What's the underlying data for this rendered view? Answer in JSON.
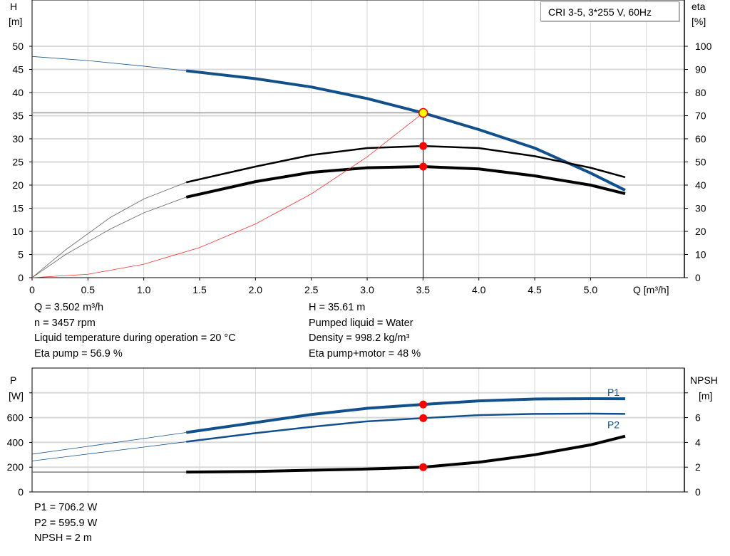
{
  "chart_data": [
    {
      "type": "line",
      "title": "CRI 3-5, 3*255 V, 60Hz",
      "xlabel": "Q [m³/h]",
      "ylabel": "H\n[m]",
      "y_left_label": {
        "name": "H",
        "unit": "[m]"
      },
      "y_right_label": {
        "name": "eta",
        "unit": "[%]"
      },
      "xlim": [
        0,
        5.84
      ],
      "ylim": [
        0,
        60
      ],
      "y2lim": [
        0,
        120
      ],
      "x_ticks": [
        "0",
        "0.5",
        "1.0",
        "1.5",
        "2.0",
        "2.5",
        "3.0",
        "3.5",
        "4.0",
        "4.5",
        "5.0"
      ],
      "y_ticks": [
        "0",
        "5",
        "10",
        "15",
        "20",
        "25",
        "30",
        "35",
        "40",
        "45",
        "50"
      ],
      "y2_ticks": [
        "0",
        "10",
        "20",
        "30",
        "40",
        "50",
        "60",
        "70",
        "80",
        "90",
        "100"
      ],
      "grid": true,
      "operating_range_start": 1.38,
      "duty_point": {
        "Q": 3.502,
        "H": 35.61,
        "eta_pump": 56.9,
        "eta_total": 48
      },
      "series": [
        {
          "key": "H",
          "axis": "left",
          "color": "#12508c",
          "x": [
            0,
            0.5,
            1.0,
            1.38,
            2.0,
            2.5,
            3.0,
            3.5,
            4.0,
            4.5,
            5.0,
            5.31
          ],
          "y": [
            47.8,
            46.9,
            45.7,
            44.7,
            43.0,
            41.2,
            38.7,
            35.6,
            32.0,
            28.0,
            22.6,
            18.9
          ]
        },
        {
          "key": "eta_pump",
          "axis": "right",
          "color": "#000000",
          "x": [
            0,
            0.3,
            0.7,
            1.0,
            1.38,
            2.0,
            2.5,
            3.0,
            3.5,
            4.0,
            4.5,
            5.0,
            5.31
          ],
          "y": [
            0,
            12,
            26,
            34,
            41.2,
            48,
            53,
            56,
            56.9,
            56,
            52.5,
            47.5,
            43.4
          ]
        },
        {
          "key": "eta_total",
          "axis": "right",
          "color": "#000000",
          "x": [
            0,
            0.3,
            0.7,
            1.0,
            1.38,
            2.0,
            2.5,
            3.0,
            3.5,
            4.0,
            4.5,
            5.0,
            5.31
          ],
          "y": [
            0,
            10,
            21,
            28,
            34.8,
            41.5,
            45.5,
            47.5,
            48,
            47,
            44,
            40,
            36.3
          ]
        },
        {
          "key": "system",
          "axis": "left",
          "color": "#ff3030",
          "x": [
            0,
            0.5,
            1.0,
            1.5,
            2.0,
            2.5,
            3.0,
            3.502
          ],
          "y": [
            0,
            0.73,
            2.9,
            6.5,
            11.6,
            18.1,
            26.1,
            35.61
          ]
        }
      ]
    },
    {
      "type": "line",
      "y_left_label": {
        "name": "P",
        "unit": "[W]"
      },
      "y_right_label": {
        "name": "NPSH",
        "unit": "[m]"
      },
      "xlim": [
        0,
        5.84
      ],
      "ylim": [
        0,
        1000
      ],
      "y2lim": [
        0,
        10
      ],
      "y_ticks": [
        "0",
        "200",
        "400",
        "600",
        ""
      ],
      "y2_ticks": [
        "0",
        "2",
        "4",
        "6",
        ""
      ],
      "grid": true,
      "series": [
        {
          "key": "P1",
          "name": "P1",
          "axis": "left",
          "color": "#12508c",
          "x": [
            0,
            0.5,
            1.0,
            1.38,
            2.0,
            2.5,
            3.0,
            3.5,
            4.0,
            4.5,
            5.0,
            5.31
          ],
          "y": [
            305,
            368,
            431,
            480,
            560,
            625,
            675,
            706.2,
            735,
            750,
            753,
            752
          ]
        },
        {
          "key": "P2",
          "name": "P2",
          "axis": "left",
          "color": "#12508c",
          "x": [
            0,
            0.5,
            1.0,
            1.38,
            2.0,
            2.5,
            3.0,
            3.5,
            4.0,
            4.5,
            5.0,
            5.31
          ],
          "y": [
            250,
            306,
            362,
            405,
            475,
            525,
            570,
            595.9,
            620,
            630,
            632,
            630
          ]
        },
        {
          "key": "NPSH",
          "axis": "right",
          "color": "#000000",
          "x": [
            0,
            1.38,
            2.0,
            2.5,
            3.0,
            3.5,
            4.0,
            4.5,
            5.0,
            5.31
          ],
          "y": [
            1.6,
            1.6,
            1.65,
            1.75,
            1.85,
            2.0,
            2.4,
            3.0,
            3.8,
            4.5
          ]
        }
      ]
    }
  ],
  "info_top_left": [
    "Q = 3.502 m³/h",
    "n = 3457 rpm",
    "Liquid temperature during operation = 20 °C",
    "Eta pump = 56.9 %"
  ],
  "info_top_right": [
    "H = 35.61 m",
    "Pumped liquid = Water",
    "Density = 998.2 kg/m³",
    "Eta pump+motor = 48 %"
  ],
  "info_bottom": [
    "P1 = 706.2 W",
    "P2 = 595.9 W",
    "NPSH = 2 m"
  ]
}
